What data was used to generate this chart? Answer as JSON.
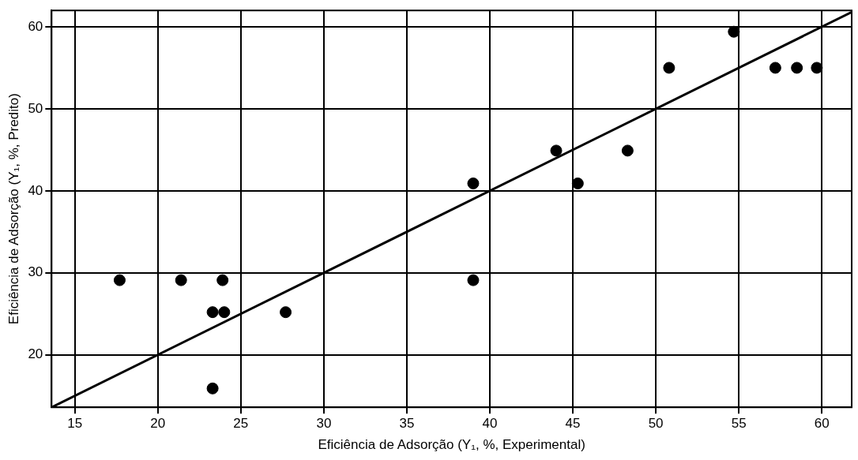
{
  "chart_data": {
    "type": "scatter",
    "xlabel": "Eficiência de Adsorção (Y₁, %, Experimental)",
    "ylabel": "Eficiência de Adsorção (Y₁, %, Predito)",
    "xlim": [
      13.6,
      61.8
    ],
    "ylim": [
      13.6,
      62
    ],
    "xticks": [
      15,
      20,
      25,
      30,
      35,
      40,
      45,
      50,
      55,
      60
    ],
    "yticks": [
      20,
      30,
      40,
      50,
      60
    ],
    "grid": true,
    "legend": false,
    "marker": "circle",
    "series": [
      {
        "type": "scatter",
        "color": "#000000",
        "x": [
          17.7,
          21.4,
          23.9,
          23.3,
          24.0,
          27.7,
          23.3,
          39.0,
          39.0,
          44.0,
          45.3,
          48.3,
          50.8,
          54.7,
          57.2,
          58.5,
          59.7
        ],
        "values": [
          29.1,
          29.1,
          29.1,
          25.2,
          25.2,
          25.2,
          15.9,
          40.9,
          29.1,
          44.9,
          40.9,
          44.9,
          55.0,
          59.4,
          55.0,
          55.0,
          55.0
        ]
      },
      {
        "type": "line",
        "color": "#000000",
        "marker": "none",
        "line_style": "solid",
        "x": [
          13.6,
          61.8
        ],
        "values": [
          13.6,
          61.8
        ]
      }
    ]
  }
}
